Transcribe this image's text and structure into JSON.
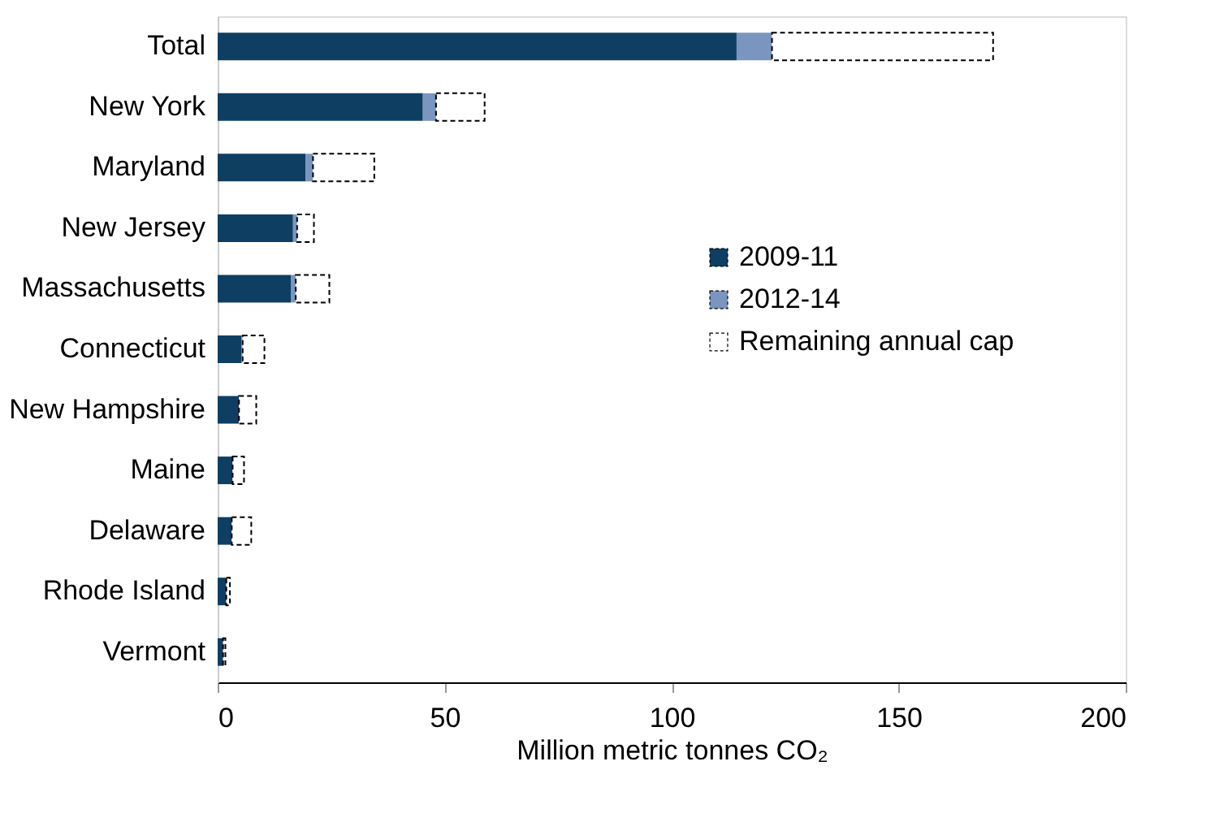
{
  "chart_data": {
    "type": "bar",
    "orientation": "horizontal",
    "stacked": true,
    "categories": [
      "Total",
      "New York",
      "Maryland",
      "New Jersey",
      "Massachusetts",
      "Connecticut",
      "New Hampshire",
      "Maine",
      "Delaware",
      "Rhode Island",
      "Vermont"
    ],
    "series": [
      {
        "name": "2009-11",
        "color": "#0e3f63",
        "values": [
          114.3,
          45.2,
          19.4,
          16.6,
          16.1,
          5.2,
          4.7,
          3.3,
          3.1,
          1.9,
          1.2
        ]
      },
      {
        "name": "2012-14",
        "color": "#7a96bf",
        "values": [
          7.8,
          2.9,
          1.6,
          0.9,
          1.1,
          0.3,
          null,
          null,
          null,
          null,
          null
        ]
      },
      {
        "name": "Remaining annual cap",
        "color": "#ffffff",
        "line_style": "dashed",
        "values": [
          48.7,
          10.7,
          13.5,
          3.7,
          7.4,
          4.8,
          3.8,
          2.5,
          4.3,
          0.8,
          0.5
        ]
      }
    ],
    "xlim": [
      0,
      200
    ],
    "xticks": [
      0,
      50,
      100,
      150,
      200
    ],
    "xlabel": "Million metric tonnes CO₂",
    "legend": "right",
    "grid": false
  }
}
